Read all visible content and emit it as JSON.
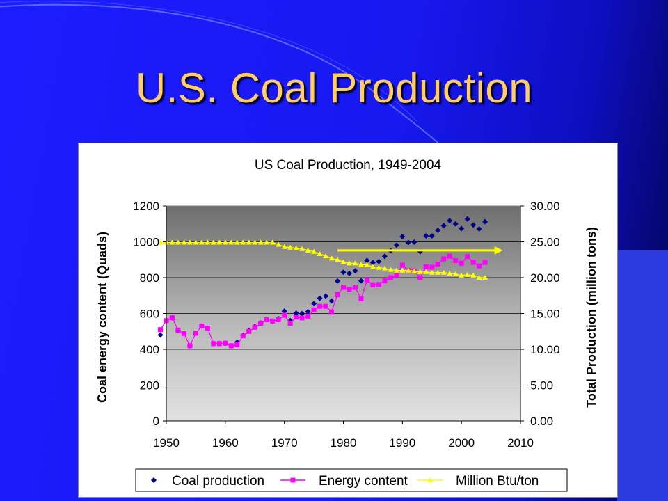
{
  "slide": {
    "title": "U.S. Coal Production"
  },
  "chart_data": {
    "type": "line",
    "title": "US Coal Production, 1949-2004",
    "xlabel": "",
    "ylabel_left": "Coal energy content (Quads)",
    "ylabel_right": "Total Production (million tons)",
    "xlim": [
      1950,
      2010
    ],
    "xticks": [
      "1950",
      "1960",
      "1970",
      "1980",
      "1990",
      "2000",
      "2010"
    ],
    "ylim_left": [
      0,
      1200
    ],
    "yticks_left": [
      "0",
      "200",
      "400",
      "600",
      "800",
      "1000",
      "1200"
    ],
    "ylim_right": [
      0,
      30
    ],
    "yticks_right": [
      "0.00",
      "5.00",
      "10.00",
      "15.00",
      "20.00",
      "25.00",
      "30.00"
    ],
    "grid": true,
    "legend_position": "bottom",
    "series": [
      {
        "name": "Coal production",
        "color": "#00008b",
        "marker": "diamond",
        "x": [
          1949,
          1950,
          1951,
          1952,
          1953,
          1954,
          1955,
          1956,
          1957,
          1958,
          1959,
          1960,
          1961,
          1962,
          1963,
          1964,
          1965,
          1966,
          1967,
          1968,
          1969,
          1970,
          1971,
          1972,
          1973,
          1974,
          1975,
          1976,
          1977,
          1978,
          1979,
          1980,
          1981,
          1982,
          1983,
          1984,
          1985,
          1986,
          1987,
          1988,
          1989,
          1990,
          1991,
          1992,
          1993,
          1994,
          1995,
          1996,
          1997,
          1998,
          1999,
          2000,
          2001,
          2002,
          2003,
          2004
        ],
        "y": [
          480,
          560,
          576,
          507,
          488,
          420,
          490,
          530,
          518,
          432,
          432,
          434,
          420,
          440,
          477,
          504,
          527,
          547,
          565,
          557,
          571,
          613,
          560,
          602,
          599,
          610,
          655,
          685,
          697,
          670,
          781,
          830,
          824,
          838,
          782,
          896,
          884,
          890,
          919,
          950,
          981,
          1029,
          996,
          998,
          945,
          1033,
          1033,
          1064,
          1090,
          1118,
          1100,
          1074,
          1127,
          1094,
          1072,
          1112
        ]
      },
      {
        "name": "Energy content",
        "color": "#ff00ff",
        "marker": "square",
        "x": [
          1949,
          1950,
          1951,
          1952,
          1953,
          1954,
          1955,
          1956,
          1957,
          1958,
          1959,
          1960,
          1961,
          1962,
          1963,
          1964,
          1965,
          1966,
          1967,
          1968,
          1969,
          1970,
          1971,
          1972,
          1973,
          1974,
          1975,
          1976,
          1977,
          1978,
          1979,
          1980,
          1981,
          1982,
          1983,
          1984,
          1985,
          1986,
          1987,
          1988,
          1989,
          1990,
          1991,
          1992,
          1993,
          1994,
          1995,
          1996,
          1997,
          1998,
          1999,
          2000,
          2001,
          2002,
          2003,
          2004
        ],
        "y": [
          510,
          560,
          576,
          507,
          488,
          420,
          490,
          530,
          518,
          432,
          432,
          434,
          420,
          425,
          475,
          500,
          523,
          545,
          565,
          558,
          565,
          590,
          545,
          580,
          575,
          585,
          620,
          640,
          640,
          610,
          705,
          745,
          735,
          745,
          682,
          785,
          760,
          762,
          782,
          800,
          812,
          870,
          840,
          838,
          800,
          860,
          858,
          876,
          905,
          920,
          895,
          880,
          918,
          885,
          865,
          885
        ]
      },
      {
        "name": "Million Btu/ton",
        "color": "#ffff00",
        "marker": "triangle",
        "x": [
          1949,
          1950,
          1951,
          1952,
          1953,
          1954,
          1955,
          1956,
          1957,
          1958,
          1959,
          1960,
          1961,
          1962,
          1963,
          1964,
          1965,
          1966,
          1967,
          1968,
          1969,
          1970,
          1971,
          1972,
          1973,
          1974,
          1975,
          1976,
          1977,
          1978,
          1979,
          1980,
          1981,
          1982,
          1983,
          1984,
          1985,
          1986,
          1987,
          1988,
          1989,
          1990,
          1991,
          1992,
          1993,
          1994,
          1995,
          1996,
          1997,
          1998,
          1999,
          2000,
          2001,
          2002,
          2003,
          2004
        ],
        "y": [
          24.9,
          24.9,
          24.9,
          24.9,
          24.9,
          24.9,
          24.9,
          24.9,
          24.9,
          24.9,
          24.9,
          24.9,
          24.9,
          24.9,
          24.9,
          24.9,
          24.9,
          24.9,
          24.9,
          24.9,
          24.6,
          24.3,
          24.2,
          24.1,
          24.0,
          23.8,
          23.6,
          23.3,
          23.0,
          22.7,
          22.5,
          22.2,
          22.0,
          22.0,
          21.8,
          21.8,
          21.5,
          21.4,
          21.3,
          21.1,
          21.0,
          21.0,
          21.0,
          20.9,
          20.8,
          20.8,
          20.7,
          20.7,
          20.7,
          20.6,
          20.5,
          20.3,
          20.4,
          20.3,
          20.0,
          20.0
        ]
      }
    ],
    "annotation": {
      "type": "arrow",
      "color": "#ffff00",
      "x_start": 1979,
      "x_end": 2007,
      "y_right": 23.8
    }
  }
}
